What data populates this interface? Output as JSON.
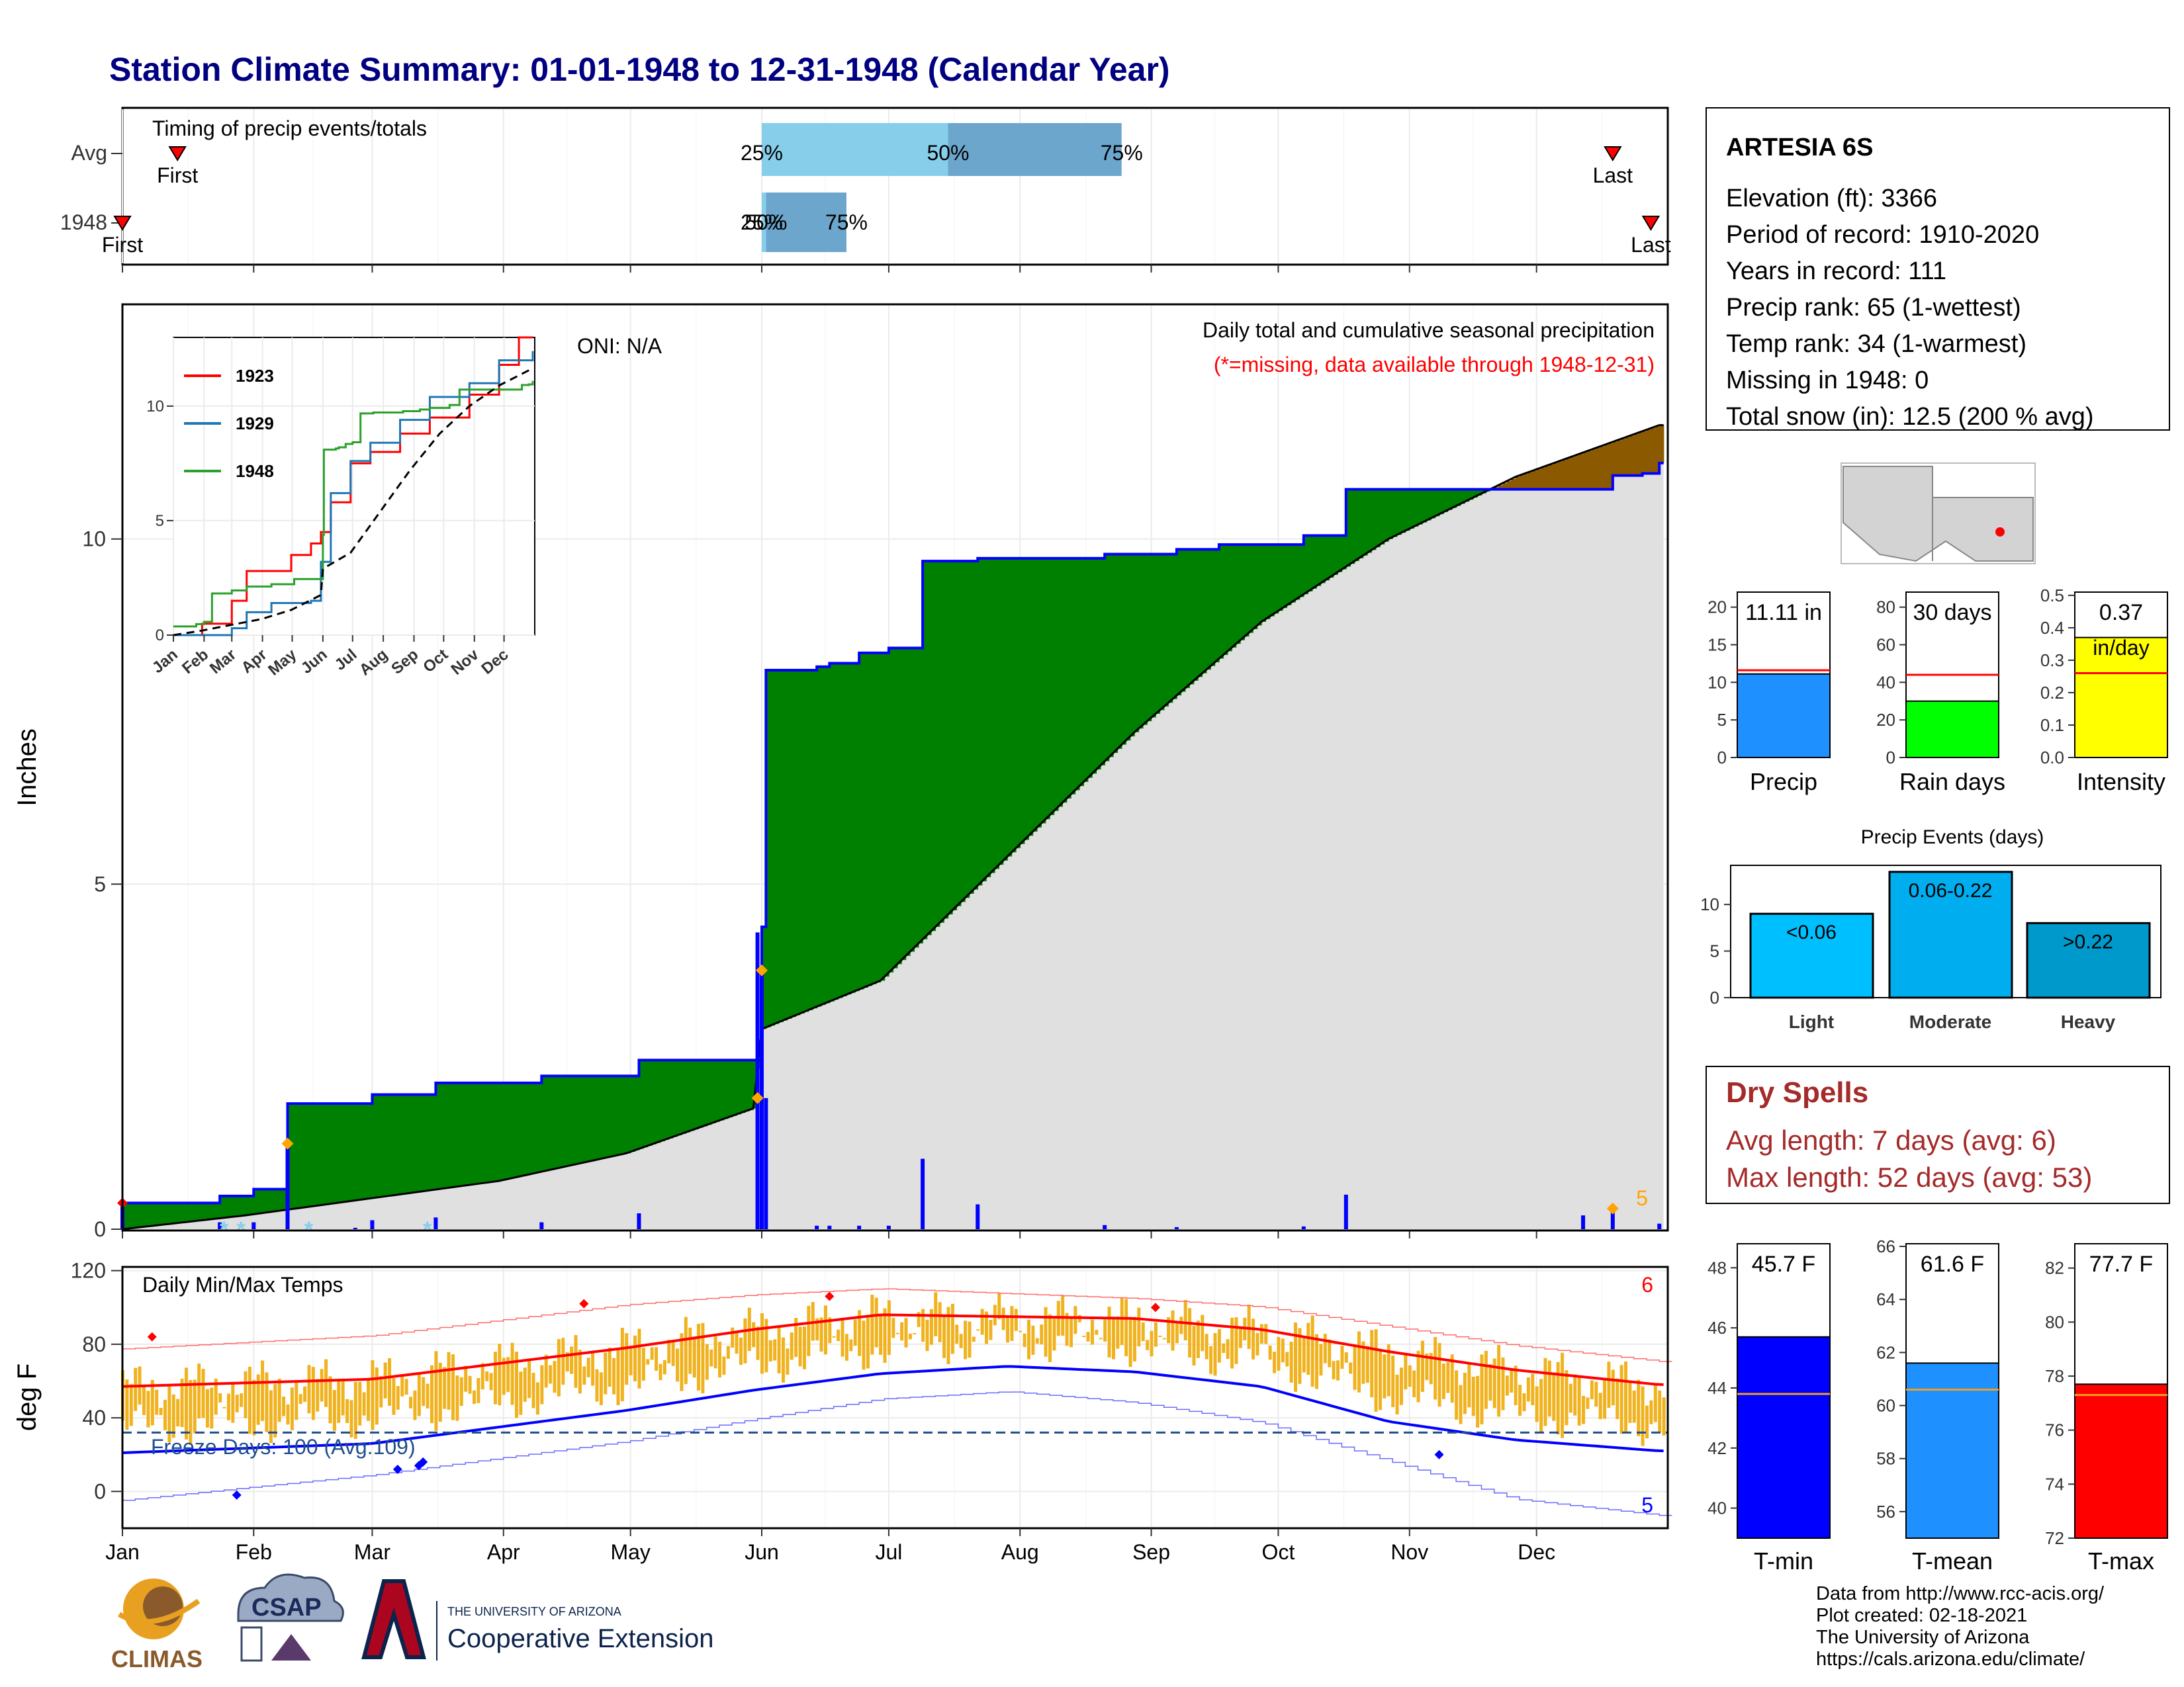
{
  "title": "Station Climate Summary: 01-01-1948 to 12-31-1948 (Calendar Year)",
  "timing_panel": {
    "label": "Timing of precip events/totals",
    "rows": [
      {
        "label": "Avg",
        "first": "First",
        "last": "Last",
        "q25": "25%",
        "q50": "50%",
        "q75": "75%",
        "first_doy": 14,
        "last_doy": 353,
        "q25_doy": 152,
        "q50_doy": 196,
        "q75_doy": 237
      },
      {
        "label": "1948",
        "first": "First",
        "last": "Last",
        "q25": "25%",
        "q50": "50%",
        "q75": "75%",
        "first_doy": 1,
        "last_doy": 362,
        "q25_doy": 152,
        "q50_doy": 153,
        "q75_doy": 172
      }
    ]
  },
  "precip_panel": {
    "ylabel": "Inches",
    "oni": "ONI: N/A",
    "note": "Daily total and cumulative seasonal precipitation",
    "missing_note": "(*=missing, data available through 1948-12-31)",
    "ytick_labels": [
      "0",
      "5",
      "10"
    ],
    "ylim": [
      0,
      13.4
    ],
    "corner_label": "5",
    "colors": {
      "above": "#008000",
      "below": "#8B5A00",
      "normal": "#E0E0E0",
      "daily": "#0000FF",
      "line": "#0000FF",
      "extreme": "#FFA500",
      "snow": "#87CEEB"
    }
  },
  "inset": {
    "legend": [
      {
        "name": "1923",
        "color": "#FF0000"
      },
      {
        "name": "1929",
        "color": "#1F77B4"
      },
      {
        "name": "1948",
        "color": "#2CA02C"
      }
    ],
    "yticks": [
      "0",
      "5",
      "10"
    ],
    "xticks": [
      "Jan",
      "Feb",
      "Mar",
      "Apr",
      "May",
      "Jun",
      "Jul",
      "Aug",
      "Sep",
      "Oct",
      "Nov",
      "Dec"
    ]
  },
  "temp_panel": {
    "ylabel": "deg F",
    "label": "Daily Min/Max Temps",
    "freeze_label": "Freeze Days: 100 (Avg:109)",
    "ytick_labels": [
      "0",
      "40",
      "80",
      "120"
    ],
    "ylim": [
      -20,
      122
    ],
    "corner_top": "6",
    "corner_bottom": "5",
    "colors": {
      "bars": "#F0B21E",
      "avg_max": "#FF0000",
      "avg_min": "#0000FF",
      "freeze_line": "#1F4E8C"
    }
  },
  "month_labels": [
    "Jan",
    "Feb",
    "Mar",
    "Apr",
    "May",
    "Jun",
    "Jul",
    "Aug",
    "Sep",
    "Oct",
    "Nov",
    "Dec"
  ],
  "station": {
    "name": "ARTESIA 6S",
    "lines": [
      "Elevation (ft): 3366",
      "Period of record: 1910-2020",
      "Years in record: 111",
      "Precip rank: 65 (1-wettest)",
      "Temp rank: 34 (1-warmest)",
      "Missing in 1948: 0",
      "Total snow (in): 12.5 (200 % avg)"
    ]
  },
  "stat_bars": [
    {
      "label": "Precip",
      "value_label": "11.11 in",
      "value": 11.11,
      "avg": 11.6,
      "ylim": [
        0,
        22
      ],
      "ticks": [
        "0",
        "5",
        "10",
        "15",
        "20"
      ],
      "color": "#1E90FF"
    },
    {
      "label": "Rain days",
      "value_label": "30 days",
      "value": 30,
      "avg": 44,
      "ylim": [
        0,
        88
      ],
      "ticks": [
        "0",
        "20",
        "40",
        "60",
        "80"
      ],
      "color": "#00FF00"
    },
    {
      "label": "Intensity",
      "value_label": "0.37",
      "unit_label": "in/day",
      "value": 0.37,
      "avg": 0.26,
      "ylim": [
        0,
        0.51
      ],
      "ticks": [
        "0.0",
        "0.1",
        "0.2",
        "0.3",
        "0.4",
        "0.5"
      ],
      "color": "#FFFF00"
    }
  ],
  "events": {
    "title": "Precip Events (days)",
    "ticks": [
      "0",
      "5",
      "10"
    ],
    "bars": [
      {
        "category": "Light",
        "label": "<0.06",
        "value": 9,
        "color": "#00BFFF"
      },
      {
        "category": "Moderate",
        "label": "0.06-0.22",
        "value": 13.5,
        "color": "#00AEEF"
      },
      {
        "category": "Heavy",
        "label": ">0.22",
        "value": 8,
        "color": "#0099CC"
      }
    ]
  },
  "dry_spells": {
    "title": "Dry Spells",
    "avg_line": "Avg length: 7 days (avg: 6)",
    "max_line": "Max length: 52 days (avg: 53)"
  },
  "temp_bars": [
    {
      "label": "T-min",
      "value_label": "45.7 F",
      "value": 45.7,
      "avg": 43.8,
      "ylim": [
        39,
        48.8
      ],
      "ticks": [
        "40",
        "42",
        "44",
        "46",
        "48"
      ],
      "color": "#0000FF"
    },
    {
      "label": "T-mean",
      "value_label": "61.6 F",
      "value": 61.6,
      "avg": 60.6,
      "ylim": [
        55,
        66.1
      ],
      "ticks": [
        "56",
        "58",
        "60",
        "62",
        "64",
        "66"
      ],
      "color": "#1E90FF"
    },
    {
      "label": "T-max",
      "value_label": "77.7 F",
      "value": 77.7,
      "avg": 77.3,
      "ylim": [
        72,
        82.9
      ],
      "ticks": [
        "72",
        "74",
        "76",
        "78",
        "80",
        "82"
      ],
      "color": "#FF0000"
    }
  ],
  "footer": {
    "lines": [
      "Data from http://www.rcc-acis.org/",
      "Plot created: 02-18-2021",
      "The University of Arizona",
      "https://cals.arizona.edu/climate/"
    ]
  },
  "logos": {
    "climas": "CLIMAS",
    "csap": "CSAP",
    "ua_small": "THE UNIVERSITY OF ARIZONA",
    "ua_big": "Cooperative Extension"
  },
  "chart_data": [
    {
      "type": "area",
      "title": "Daily total and cumulative seasonal precipitation",
      "ylabel": "Inches",
      "ylim": [
        0,
        13.4
      ],
      "cumulative_1948": [
        [
          1,
          0.38
        ],
        [
          10,
          0.38
        ],
        [
          23,
          0.38
        ],
        [
          24,
          0.48
        ],
        [
          32,
          0.58
        ],
        [
          39,
          0.58
        ],
        [
          40,
          1.82
        ],
        [
          56,
          1.82
        ],
        [
          60,
          1.95
        ],
        [
          73,
          1.95
        ],
        [
          75,
          2.12
        ],
        [
          93,
          2.12
        ],
        [
          100,
          2.22
        ],
        [
          122,
          2.22
        ],
        [
          123,
          2.45
        ],
        [
          147,
          2.45
        ],
        [
          152,
          4.38
        ],
        [
          153,
          8.1
        ],
        [
          165,
          8.15
        ],
        [
          168,
          8.2
        ],
        [
          175,
          8.35
        ],
        [
          182,
          8.42
        ],
        [
          189,
          8.42
        ],
        [
          190,
          9.68
        ],
        [
          202,
          9.68
        ],
        [
          203,
          9.72
        ],
        [
          222,
          9.72
        ],
        [
          233,
          9.78
        ],
        [
          242,
          9.78
        ],
        [
          250,
          9.85
        ],
        [
          260,
          9.92
        ],
        [
          280,
          10.05
        ],
        [
          289,
          10.05
        ],
        [
          290,
          10.72
        ],
        [
          310,
          10.72
        ],
        [
          346,
          10.72
        ],
        [
          353,
          10.92
        ],
        [
          360,
          10.95
        ],
        [
          364,
          11.1
        ]
      ],
      "cumulative_normal": [
        [
          1,
          0
        ],
        [
          30,
          0.2
        ],
        [
          60,
          0.45
        ],
        [
          90,
          0.7
        ],
        [
          120,
          1.1
        ],
        [
          150,
          1.75
        ],
        [
          152,
          2.9
        ],
        [
          180,
          3.6
        ],
        [
          210,
          5.4
        ],
        [
          240,
          7.2
        ],
        [
          270,
          8.8
        ],
        [
          300,
          10.0
        ],
        [
          330,
          10.9
        ],
        [
          364,
          11.65
        ]
      ],
      "daily_precip": [
        [
          1,
          0.38
        ],
        [
          24,
          0.1
        ],
        [
          32,
          0.1
        ],
        [
          40,
          1.24
        ],
        [
          56,
          0.02
        ],
        [
          60,
          0.13
        ],
        [
          75,
          0.17
        ],
        [
          100,
          0.1
        ],
        [
          123,
          0.23
        ],
        [
          151,
          4.3
        ],
        [
          152,
          3.7
        ],
        [
          153,
          1.9
        ],
        [
          165,
          0.05
        ],
        [
          168,
          0.05
        ],
        [
          175,
          0.05
        ],
        [
          182,
          0.05
        ],
        [
          190,
          1.02
        ],
        [
          203,
          0.36
        ],
        [
          233,
          0.06
        ],
        [
          250,
          0.03
        ],
        [
          280,
          0.04
        ],
        [
          290,
          0.5
        ],
        [
          346,
          0.2
        ],
        [
          353,
          0.25
        ],
        [
          364,
          0.08
        ]
      ]
    },
    {
      "type": "line",
      "title": "Daily Min/Max Temps",
      "ylabel": "deg F",
      "ylim": [
        -20,
        122
      ],
      "avg_max": [
        [
          1,
          57
        ],
        [
          60,
          61
        ],
        [
          120,
          78
        ],
        [
          150,
          88
        ],
        [
          180,
          96
        ],
        [
          210,
          95
        ],
        [
          240,
          94
        ],
        [
          270,
          88
        ],
        [
          300,
          76
        ],
        [
          330,
          66
        ],
        [
          364,
          58
        ]
      ],
      "avg_min": [
        [
          1,
          21
        ],
        [
          60,
          26
        ],
        [
          120,
          44
        ],
        [
          150,
          55
        ],
        [
          180,
          64
        ],
        [
          210,
          68
        ],
        [
          240,
          65
        ],
        [
          270,
          57
        ],
        [
          300,
          38
        ],
        [
          330,
          28
        ],
        [
          364,
          22
        ]
      ],
      "record_max": [
        [
          1,
          74
        ],
        [
          60,
          82
        ],
        [
          120,
          100
        ],
        [
          150,
          106
        ],
        [
          180,
          110
        ],
        [
          210,
          108
        ],
        [
          240,
          106
        ],
        [
          270,
          102
        ],
        [
          300,
          92
        ],
        [
          330,
          82
        ],
        [
          364,
          74
        ]
      ],
      "record_min": [
        [
          1,
          -10
        ],
        [
          60,
          5
        ],
        [
          120,
          25
        ],
        [
          150,
          38
        ],
        [
          180,
          50
        ],
        [
          210,
          55
        ],
        [
          240,
          50
        ],
        [
          270,
          40
        ],
        [
          300,
          20
        ],
        [
          330,
          0
        ],
        [
          364,
          -8
        ]
      ],
      "freeze_threshold": 32
    }
  ]
}
